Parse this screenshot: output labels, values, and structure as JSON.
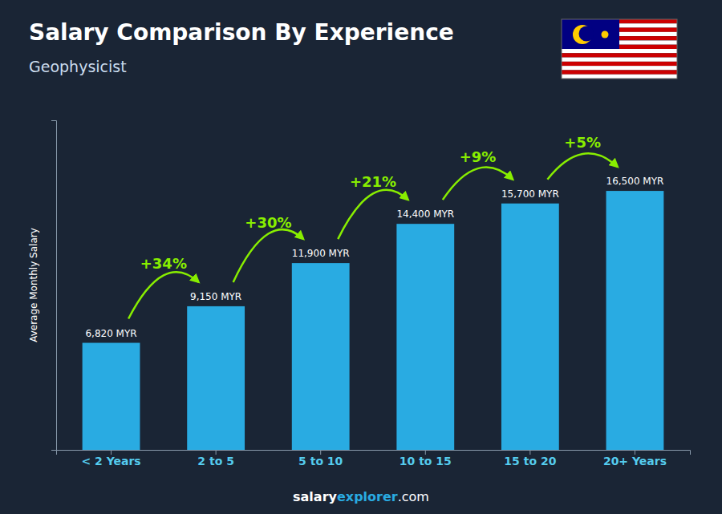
{
  "chart_data": {
    "type": "bar",
    "title": "Salary Comparison By Experience",
    "subtitle": "Geophysicist",
    "ylabel": "Average Monthly Salary",
    "categories": [
      "< 2 Years",
      "2 to 5",
      "5 to 10",
      "10 to 15",
      "15 to 20",
      "20+ Years"
    ],
    "values": [
      6820,
      9150,
      11900,
      14400,
      15700,
      16500
    ],
    "value_labels": [
      "6,820 MYR",
      "9,150 MYR",
      "11,900 MYR",
      "14,400 MYR",
      "15,700 MYR",
      "16,500 MYR"
    ],
    "data_labels": true,
    "color": "#29ABE2",
    "ylim": [
      0,
      21000
    ],
    "tick_labels": "x",
    "annotations": [
      "+34%",
      "+30%",
      "+21%",
      "+9%",
      "+5%"
    ],
    "footer": [
      "salary",
      "explorer",
      ".com"
    ]
  }
}
